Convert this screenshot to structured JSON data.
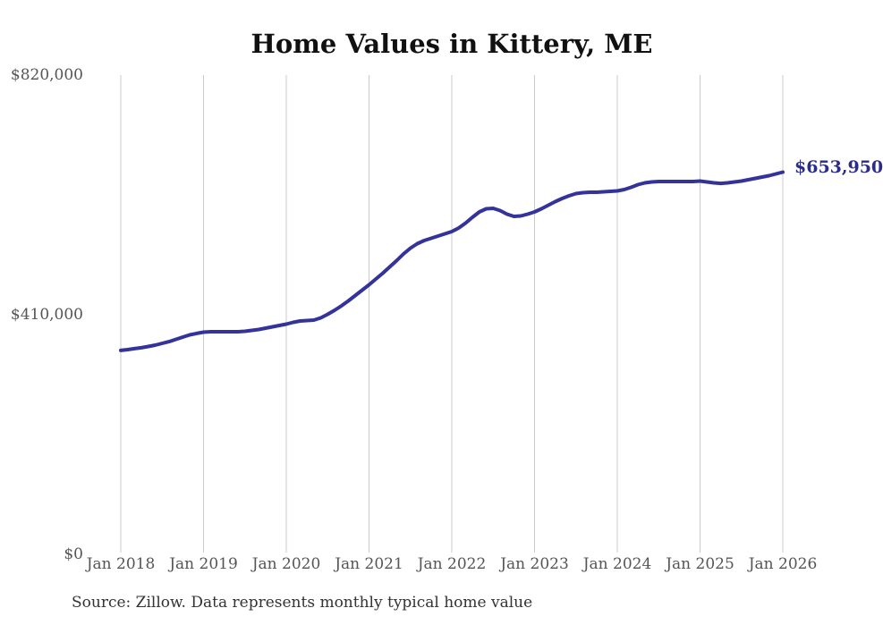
{
  "title": "Home Values in Kittery, ME",
  "end_label": "$653,950",
  "source_note": "Source: Zillow. Data represents monthly typical home value",
  "colors": {
    "line": "#33339b",
    "end_label_text": "#2b2b8c",
    "grid": "#cbcbcb",
    "title_text": "#111111",
    "axis_text": "#555555",
    "source_text": "#333333",
    "background": "#ffffff"
  },
  "chart_data": {
    "type": "line",
    "title": "Home Values in Kittery, ME",
    "series_name": "Monthly typical home value",
    "x": {
      "start": "2018-01",
      "end": "2026-01",
      "interval": "monthly",
      "count": 97
    },
    "x_tick_labels": [
      "Jan 2018",
      "Jan 2019",
      "Jan 2020",
      "Jan 2021",
      "Jan 2022",
      "Jan 2023",
      "Jan 2024",
      "Jan 2025",
      "Jan 2026"
    ],
    "y_ticks": [
      0,
      410000,
      820000
    ],
    "y_tick_labels": [
      "$0",
      "$410,000",
      "$820,000"
    ],
    "ylim": [
      0,
      820000
    ],
    "grid": "vertical-only",
    "legend": "none",
    "last_value": 653950,
    "last_value_label": "$653,950",
    "values": [
      349000,
      350300,
      352000,
      353500,
      355700,
      358000,
      361000,
      364000,
      368000,
      371700,
      375600,
      378000,
      380200,
      380900,
      381000,
      381000,
      381000,
      381000,
      381700,
      383200,
      384700,
      387000,
      389300,
      391600,
      393900,
      397000,
      399300,
      400000,
      400800,
      404600,
      410700,
      417600,
      425300,
      433700,
      442900,
      452000,
      461200,
      471200,
      481100,
      491800,
      502500,
      514000,
      524000,
      531600,
      537000,
      540800,
      544600,
      548500,
      552300,
      558400,
      566800,
      576800,
      585900,
      591300,
      592000,
      588200,
      582100,
      578300,
      579000,
      582100,
      585900,
      591300,
      597400,
      603500,
      608900,
      613500,
      617300,
      618800,
      619600,
      619600,
      620300,
      621100,
      621900,
      624200,
      628000,
      632600,
      635600,
      637200,
      637900,
      637900,
      637900,
      637900,
      637900,
      637900,
      638700,
      637200,
      635600,
      634800,
      635600,
      637200,
      638700,
      641000,
      643300,
      645600,
      647900,
      650900,
      653950
    ]
  }
}
